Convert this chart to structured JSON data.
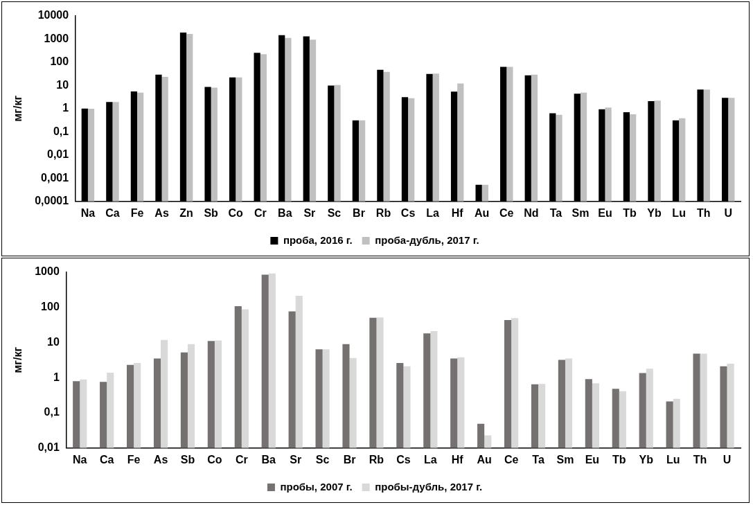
{
  "chart_data": [
    {
      "type": "bar",
      "ylabel": "мг/кг",
      "log": "y",
      "grid": false,
      "legend": "bottom",
      "categories": [
        "Na",
        "Ca",
        "Fe",
        "As",
        "Zn",
        "Sb",
        "Co",
        "Cr",
        "Ba",
        "Sr",
        "Sc",
        "Br",
        "Rb",
        "Cs",
        "La",
        "Hf",
        "Au",
        "Ce",
        "Nd",
        "Ta",
        "Sm",
        "Eu",
        "Tb",
        "Yb",
        "Lu",
        "Th",
        "U"
      ],
      "ylim": [
        0.0001,
        10000
      ],
      "yticks": [
        {
          "value": 0.0001,
          "label": "0,0001"
        },
        {
          "value": 0.001,
          "label": "0,001"
        },
        {
          "value": 0.01,
          "label": "0,01"
        },
        {
          "value": 0.1,
          "label": "0,1"
        },
        1,
        10,
        100,
        1000,
        10000
      ],
      "series": [
        {
          "name": "проба, 2016 г.",
          "color": "#000000",
          "values": [
            1.0,
            1.9,
            5.5,
            29,
            1860,
            8.5,
            22,
            250,
            1450,
            1280,
            9.8,
            0.31,
            47,
            3.1,
            31,
            5.4,
            0.00052,
            63,
            27,
            0.63,
            4.4,
            0.93,
            0.69,
            2.1,
            0.31,
            6.6,
            2.9
          ]
        },
        {
          "name": "проба-дубль, 2017 г.",
          "color": "#c0c0c0",
          "values": [
            0.98,
            1.9,
            4.8,
            23,
            1630,
            7.9,
            22,
            220,
            1100,
            930,
            10.3,
            0.31,
            38,
            2.8,
            32,
            12,
            0.00052,
            63,
            29,
            0.54,
            4.8,
            1.1,
            0.57,
            2.2,
            0.38,
            6.6,
            2.9
          ]
        }
      ]
    },
    {
      "type": "bar",
      "ylabel": "мг/кг",
      "log": "y",
      "grid": false,
      "legend": "bottom",
      "categories": [
        "Na",
        "Ca",
        "Fe",
        "As",
        "Sb",
        "Co",
        "Cr",
        "Ba",
        "Sr",
        "Sc",
        "Br",
        "Rb",
        "Cs",
        "La",
        "Hf",
        "Au",
        "Ce",
        "Ta",
        "Sm",
        "Eu",
        "Tb",
        "Yb",
        "Lu",
        "Th",
        "U"
      ],
      "ylim": [
        0.01,
        1000
      ],
      "yticks": [
        {
          "value": 0.01,
          "label": "0,01"
        },
        {
          "value": 0.1,
          "label": "0,1"
        },
        1,
        10,
        100,
        1000
      ],
      "series": [
        {
          "name": "пробы, 2007 г.",
          "color": "#767171",
          "values": [
            0.79,
            0.76,
            2.3,
            3.5,
            5.2,
            11,
            107,
            840,
            76,
            6.4,
            8.9,
            50,
            2.6,
            18,
            3.5,
            0.049,
            43,
            0.65,
            3.2,
            0.91,
            0.48,
            1.35,
            0.21,
            4.8,
            2.1
          ]
        },
        {
          "name": "пробы-дубль, 2017 г.",
          "color": "#d9d9d9",
          "values": [
            0.89,
            1.38,
            2.6,
            11.7,
            8.9,
            11.3,
            87,
            910,
            210,
            6.4,
            3.6,
            51,
            2.1,
            21,
            3.8,
            0.023,
            49,
            0.66,
            3.5,
            0.69,
            0.41,
            1.8,
            0.25,
            4.8,
            2.5
          ]
        }
      ]
    }
  ]
}
